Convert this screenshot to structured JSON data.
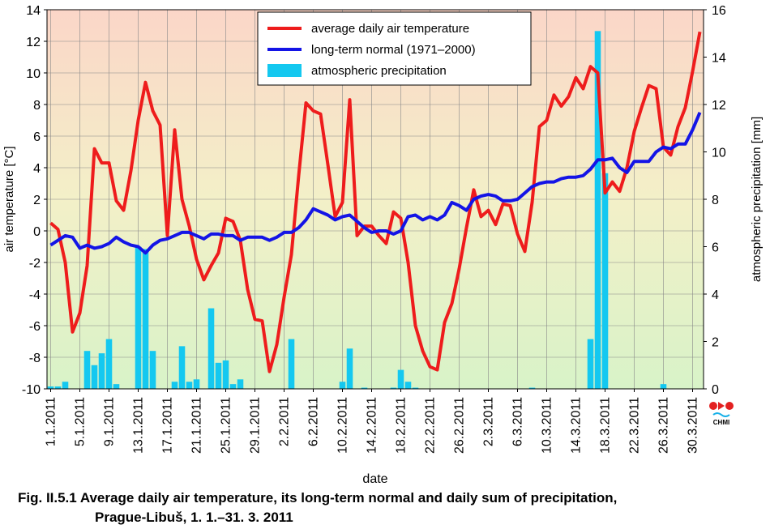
{
  "chart_data": {
    "type": "line",
    "caption": [
      "Fig. II.5.1  Average daily air temperature, its long-term normal and daily sum of precipitation,",
      "Prague-Libuš, 1. 1.–31. 3. 2011"
    ],
    "xlabel": "date",
    "ylabel": "air temperature [°C]",
    "y2label": "atmospheric precipitation [mm]",
    "logo": "CHMI",
    "categories": [
      "1.1.2011",
      null,
      null,
      null,
      "5.1.2011",
      null,
      null,
      null,
      "9.1.2011",
      null,
      null,
      null,
      "13.1.2011",
      null,
      null,
      null,
      "17.1.2011",
      null,
      null,
      null,
      "21.1.2011",
      null,
      null,
      null,
      "25.1.2011",
      null,
      null,
      null,
      "29.1.2011",
      null,
      null,
      null,
      "2.2.2011",
      null,
      null,
      null,
      "6.2.2011",
      null,
      null,
      null,
      "10.2.2011",
      null,
      null,
      null,
      "14.2.2011",
      null,
      null,
      null,
      "18.2.2011",
      null,
      null,
      null,
      "22.2.2011",
      null,
      null,
      null,
      "26.2.2011",
      null,
      null,
      null,
      "2.3.2011",
      null,
      null,
      null,
      "6.3.2011",
      null,
      null,
      null,
      "10.3.2011",
      null,
      null,
      null,
      "14.3.2011",
      null,
      null,
      null,
      "18.3.2011",
      null,
      null,
      null,
      "22.3.2011",
      null,
      null,
      null,
      "26.3.2011",
      null,
      null,
      null,
      "30.3.2011",
      null
    ],
    "series": [
      {
        "name": "average daily air temperature",
        "type": "line",
        "color": "#ee1c1c",
        "values": [
          0.5,
          0.1,
          -2.0,
          -6.4,
          -5.2,
          -2.2,
          5.2,
          4.3,
          4.3,
          1.9,
          1.3,
          3.8,
          7.0,
          9.4,
          7.6,
          6.7,
          -0.3,
          6.4,
          2.0,
          0.3,
          -1.8,
          -3.1,
          -2.2,
          -1.4,
          0.8,
          0.6,
          -0.6,
          -3.7,
          -5.6,
          -5.7,
          -8.9,
          -7.2,
          -4.2,
          -1.5,
          3.5,
          8.1,
          7.6,
          7.4,
          4.2,
          0.9,
          1.8,
          8.3,
          -0.3,
          0.3,
          0.3,
          -0.3,
          -0.8,
          1.2,
          0.8,
          -2.0,
          -6.0,
          -7.6,
          -8.6,
          -8.8,
          -5.8,
          -4.6,
          -2.4,
          0.2,
          2.6,
          0.9,
          1.3,
          0.4,
          1.7,
          1.6,
          -0.2,
          -1.3,
          1.8,
          6.6,
          7.0,
          8.6,
          7.9,
          8.5,
          9.7,
          9.0,
          10.4,
          10.0,
          2.4,
          3.1,
          2.5,
          4.0,
          6.3,
          7.8,
          9.2,
          9.0,
          5.3,
          4.8,
          6.6,
          7.8,
          10.1,
          12.6
        ]
      },
      {
        "name": "long-term normal (1971–2000)",
        "type": "line",
        "color": "#1414e6",
        "values": [
          -0.9,
          -0.6,
          -0.3,
          -0.4,
          -1.1,
          -0.9,
          -1.1,
          -1.0,
          -0.8,
          -0.4,
          -0.7,
          -0.9,
          -1.0,
          -1.4,
          -0.9,
          -0.6,
          -0.5,
          -0.3,
          -0.1,
          -0.1,
          -0.3,
          -0.5,
          -0.2,
          -0.2,
          -0.3,
          -0.3,
          -0.6,
          -0.4,
          -0.4,
          -0.4,
          -0.6,
          -0.4,
          -0.1,
          -0.1,
          0.2,
          0.7,
          1.4,
          1.2,
          1.0,
          0.7,
          0.9,
          1.0,
          0.6,
          0.2,
          -0.1,
          0.0,
          0.0,
          -0.2,
          0.0,
          0.9,
          1.0,
          0.7,
          0.9,
          0.7,
          1.0,
          1.8,
          1.6,
          1.3,
          2.0,
          2.2,
          2.3,
          2.2,
          1.9,
          1.9,
          2.0,
          2.4,
          2.8,
          3.0,
          3.1,
          3.1,
          3.3,
          3.4,
          3.4,
          3.5,
          3.9,
          4.5,
          4.5,
          4.6,
          4.0,
          3.7,
          4.4,
          4.4,
          4.4,
          5.0,
          5.3,
          5.2,
          5.5,
          5.5,
          6.4,
          7.5
        ]
      },
      {
        "name": "atmospheric precipitation",
        "type": "bar",
        "axis": "y2",
        "color": "#14c8f0",
        "values": [
          0.1,
          0.1,
          0.3,
          0,
          0,
          1.6,
          1.0,
          1.5,
          2.1,
          0.2,
          0,
          0,
          6.0,
          5.9,
          1.6,
          0,
          0,
          0.3,
          1.8,
          0.3,
          0.4,
          0,
          3.4,
          1.1,
          1.2,
          0.2,
          0.4,
          0,
          0,
          0,
          0,
          0,
          0,
          2.1,
          0,
          0,
          0,
          0,
          0,
          0,
          0.3,
          1.7,
          0,
          0.05,
          0,
          0,
          0,
          0.05,
          0.8,
          0.3,
          0.05,
          0,
          0,
          0,
          0,
          0,
          0,
          0,
          0,
          0,
          0,
          0,
          0,
          0,
          0,
          0,
          0.05,
          0,
          0,
          0,
          0,
          0,
          0,
          0,
          2.1,
          15.1,
          9.1,
          0,
          0,
          0,
          0,
          0,
          0,
          0,
          0.2,
          0,
          0,
          0,
          0,
          0
        ]
      }
    ],
    "ylim": [
      -10,
      14
    ],
    "yticks": [
      -10,
      -8,
      -6,
      -4,
      -2,
      0,
      2,
      4,
      6,
      8,
      10,
      12,
      14
    ],
    "y2lim": [
      0,
      16
    ],
    "y2ticks": [
      0,
      2,
      4,
      6,
      8,
      10,
      12,
      14,
      16
    ],
    "grid": true,
    "legend": "top"
  }
}
